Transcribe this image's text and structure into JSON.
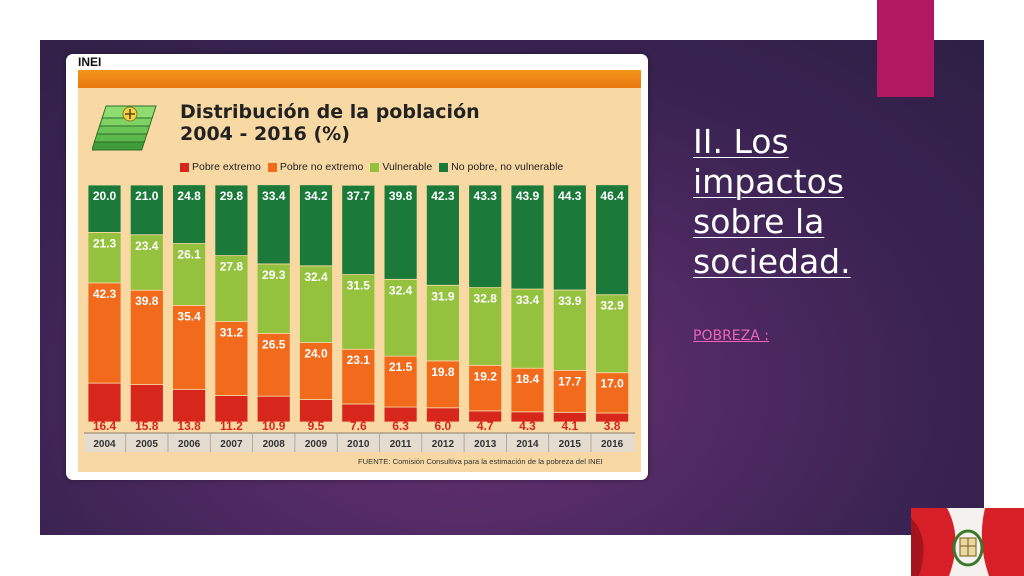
{
  "slide": {
    "title": "II. Los impactos sobre la sociedad.",
    "subtitle": "POBREZA :",
    "colors": {
      "background": "#4f2a63",
      "accent": "#b0195f",
      "title": "#ffffff",
      "subtitle": "#ee63b8"
    }
  },
  "figure": {
    "brand": "INEI",
    "source": "FUENTE: Comisión Consultiva para la estimación de la pobreza del INEI",
    "icon": "money-stack-icon"
  },
  "decor": {
    "flag_icon": "peru-flag-icon"
  },
  "chart_data": {
    "type": "bar",
    "stacked": true,
    "normalized": true,
    "title": "Distribución de la población 2004 - 2016 (%)",
    "title_lines": [
      "Distribución de la población",
      "2004 - 2016 (%)"
    ],
    "categories": [
      "2004",
      "2005",
      "2006",
      "2007",
      "2008",
      "2009",
      "2010",
      "2011",
      "2012",
      "2013",
      "2014",
      "2015",
      "2016"
    ],
    "series": [
      {
        "name": "Pobre extremo",
        "color": "#d7261b",
        "values": [
          16.4,
          15.8,
          13.8,
          11.2,
          10.9,
          9.5,
          7.6,
          6.3,
          6.0,
          4.7,
          4.3,
          4.1,
          3.8
        ]
      },
      {
        "name": "Pobre no extremo",
        "color": "#f26a1b",
        "values": [
          42.3,
          39.8,
          35.4,
          31.2,
          26.5,
          24.0,
          23.1,
          21.5,
          19.8,
          19.2,
          18.4,
          17.7,
          17.0
        ]
      },
      {
        "name": "Vulnerable",
        "color": "#94c13e",
        "values": [
          21.3,
          23.4,
          26.1,
          27.8,
          29.3,
          32.4,
          31.5,
          32.4,
          31.9,
          32.8,
          33.4,
          33.9,
          32.9
        ]
      },
      {
        "name": "No pobre, no vulnerable",
        "color": "#1b7a3a",
        "values": [
          20.0,
          21.0,
          24.8,
          29.8,
          33.4,
          34.2,
          37.7,
          39.8,
          42.3,
          43.3,
          43.9,
          44.3,
          46.4
        ]
      }
    ],
    "ylim": [
      0,
      100
    ],
    "grid": false,
    "legend_position": "top"
  }
}
